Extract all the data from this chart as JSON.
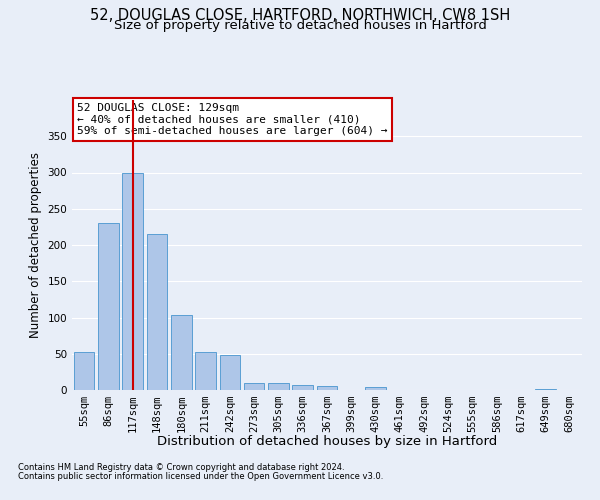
{
  "title1": "52, DOUGLAS CLOSE, HARTFORD, NORTHWICH, CW8 1SH",
  "title2": "Size of property relative to detached houses in Hartford",
  "xlabel": "Distribution of detached houses by size in Hartford",
  "ylabel": "Number of detached properties",
  "footnote1": "Contains HM Land Registry data © Crown copyright and database right 2024.",
  "footnote2": "Contains public sector information licensed under the Open Government Licence v3.0.",
  "categories": [
    "55sqm",
    "86sqm",
    "117sqm",
    "148sqm",
    "180sqm",
    "211sqm",
    "242sqm",
    "273sqm",
    "305sqm",
    "336sqm",
    "367sqm",
    "399sqm",
    "430sqm",
    "461sqm",
    "492sqm",
    "524sqm",
    "555sqm",
    "586sqm",
    "617sqm",
    "649sqm",
    "680sqm"
  ],
  "values": [
    52,
    231,
    300,
    215,
    104,
    52,
    48,
    10,
    10,
    7,
    5,
    0,
    4,
    0,
    0,
    0,
    0,
    0,
    0,
    2,
    0
  ],
  "bar_color": "#aec6e8",
  "bar_edge_color": "#5a9fd4",
  "vline_x": 2.0,
  "vline_color": "#cc0000",
  "annotation_text": "52 DOUGLAS CLOSE: 129sqm\n← 40% of detached houses are smaller (410)\n59% of semi-detached houses are larger (604) →",
  "annotation_box_color": "#ffffff",
  "annotation_box_edge": "#cc0000",
  "bg_color": "#e8eef8",
  "ylim": [
    0,
    400
  ],
  "yticks": [
    0,
    50,
    100,
    150,
    200,
    250,
    300,
    350
  ],
  "grid_color": "#ffffff",
  "title_fontsize": 10.5,
  "subtitle_fontsize": 9.5,
  "tick_fontsize": 7.5,
  "ylabel_fontsize": 8.5,
  "xlabel_fontsize": 9.5,
  "footnote_fontsize": 6.0
}
